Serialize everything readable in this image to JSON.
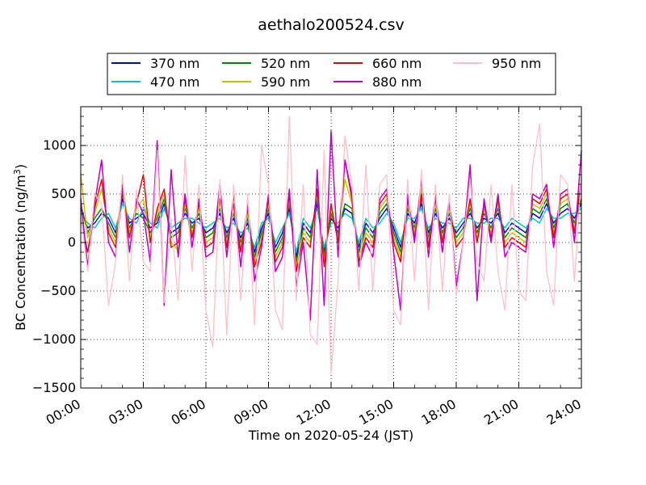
{
  "chart_data": {
    "type": "line",
    "title": "aethalo200524.csv",
    "xlabel": "Time on 2020-05-24 (JST)",
    "ylabel": "BC Concentration (ng/m³)",
    "xlim": [
      "00:00",
      "24:00"
    ],
    "ylim": [
      -1500,
      1400
    ],
    "x_tick_labels": [
      "00:00",
      "03:00",
      "06:00",
      "09:00",
      "12:00",
      "15:00",
      "18:00",
      "21:00",
      "24:00"
    ],
    "y_ticks": [
      -1500,
      -1000,
      -500,
      0,
      500,
      1000
    ],
    "y_tick_labels": [
      "−1500",
      "−1000",
      "−500",
      "0",
      "500",
      "1000"
    ],
    "grid": true,
    "legend_position": "top-center, above plot",
    "x": [
      "00:00",
      "00:20",
      "00:40",
      "01:00",
      "01:20",
      "01:40",
      "02:00",
      "02:20",
      "02:40",
      "03:00",
      "03:20",
      "03:40",
      "04:00",
      "04:20",
      "04:40",
      "05:00",
      "05:20",
      "05:40",
      "06:00",
      "06:20",
      "06:40",
      "07:00",
      "07:20",
      "07:40",
      "08:00",
      "08:20",
      "08:40",
      "09:00",
      "09:20",
      "09:40",
      "10:00",
      "10:20",
      "10:40",
      "11:00",
      "11:20",
      "11:40",
      "12:00",
      "12:20",
      "12:40",
      "13:00",
      "13:20",
      "13:40",
      "14:00",
      "14:20",
      "14:40",
      "15:00",
      "15:20",
      "15:40",
      "16:00",
      "16:20",
      "16:40",
      "17:00",
      "17:20",
      "17:40",
      "18:00",
      "18:20",
      "18:40",
      "19:00",
      "19:20",
      "19:40",
      "20:00",
      "20:20",
      "20:40",
      "21:00",
      "21:20",
      "21:40",
      "22:00",
      "22:20",
      "22:40",
      "23:00",
      "23:20",
      "23:40",
      "24:00"
    ],
    "series": [
      {
        "name": "370 nm",
        "color": "#0000cc",
        "values": [
          350,
          150,
          200,
          300,
          250,
          100,
          450,
          200,
          250,
          300,
          150,
          200,
          400,
          100,
          150,
          300,
          200,
          250,
          100,
          150,
          300,
          100,
          250,
          50,
          200,
          -100,
          150,
          300,
          -50,
          100,
          350,
          -150,
          200,
          100,
          400,
          -100,
          250,
          150,
          350,
          300,
          -50,
          200,
          100,
          250,
          350,
          150,
          -50,
          300,
          200,
          400,
          100,
          300,
          150,
          250,
          100,
          200,
          300,
          150,
          250,
          200,
          300,
          100,
          200,
          150,
          100,
          300,
          250,
          400,
          200,
          300,
          350,
          250,
          400
        ]
      },
      {
        "name": "470 nm",
        "color": "#00bfbf",
        "values": [
          300,
          200,
          150,
          250,
          300,
          150,
          400,
          250,
          200,
          350,
          200,
          150,
          350,
          150,
          200,
          250,
          250,
          200,
          150,
          200,
          250,
          150,
          200,
          100,
          150,
          -50,
          200,
          250,
          0,
          150,
          300,
          -100,
          250,
          150,
          350,
          -50,
          200,
          200,
          300,
          250,
          0,
          250,
          150,
          200,
          300,
          200,
          0,
          250,
          250,
          350,
          150,
          250,
          200,
          200,
          150,
          250,
          250,
          200,
          200,
          250,
          250,
          150,
          250,
          200,
          150,
          250,
          200,
          350,
          250,
          250,
          300,
          300,
          350
        ]
      },
      {
        "name": "520 nm",
        "color": "#008000",
        "values": [
          400,
          100,
          250,
          350,
          200,
          50,
          500,
          150,
          300,
          250,
          100,
          250,
          450,
          50,
          100,
          350,
          150,
          300,
          50,
          100,
          350,
          50,
          300,
          0,
          250,
          -150,
          100,
          350,
          -100,
          50,
          400,
          -200,
          150,
          50,
          450,
          -150,
          300,
          100,
          400,
          350,
          -100,
          150,
          50,
          300,
          400,
          100,
          -100,
          350,
          150,
          450,
          50,
          350,
          100,
          300,
          50,
          150,
          350,
          100,
          300,
          150,
          350,
          50,
          150,
          100,
          50,
          350,
          300,
          450,
          150,
          350,
          400,
          200,
          450
        ]
      },
      {
        "name": "590 nm",
        "color": "#bfbf00",
        "values": [
          700,
          50,
          300,
          550,
          150,
          0,
          600,
          100,
          350,
          450,
          50,
          300,
          500,
          0,
          -80,
          400,
          100,
          350,
          0,
          50,
          400,
          0,
          350,
          -50,
          300,
          -200,
          50,
          400,
          -150,
          0,
          450,
          -250,
          100,
          0,
          500,
          -200,
          350,
          50,
          650,
          400,
          -150,
          100,
          0,
          350,
          450,
          50,
          -150,
          400,
          100,
          550,
          0,
          400,
          50,
          350,
          0,
          100,
          400,
          50,
          350,
          100,
          400,
          0,
          100,
          50,
          0,
          400,
          350,
          500,
          100,
          400,
          450,
          150,
          600
        ]
      },
      {
        "name": "660 nm",
        "color": "#e00000",
        "values": [
          250,
          -100,
          350,
          650,
          100,
          -50,
          550,
          50,
          400,
          700,
          0,
          350,
          550,
          -50,
          0,
          450,
          50,
          400,
          -50,
          0,
          450,
          -50,
          400,
          -100,
          350,
          -250,
          0,
          450,
          -200,
          -50,
          500,
          -300,
          50,
          -50,
          550,
          -250,
          400,
          0,
          850,
          450,
          -200,
          50,
          -50,
          400,
          500,
          0,
          -200,
          450,
          50,
          500,
          -50,
          450,
          0,
          400,
          -50,
          50,
          450,
          0,
          400,
          50,
          450,
          -50,
          50,
          0,
          -50,
          450,
          400,
          550,
          50,
          450,
          500,
          100,
          650
        ]
      },
      {
        "name": "880 nm",
        "color": "#bf00bf",
        "values": [
          450,
          -250,
          400,
          850,
          0,
          -150,
          600,
          -100,
          450,
          300,
          -200,
          1050,
          -650,
          750,
          -150,
          500,
          -50,
          450,
          -150,
          -100,
          600,
          -150,
          500,
          -250,
          400,
          -400,
          -50,
          500,
          -300,
          -150,
          550,
          -450,
          0,
          -800,
          750,
          -650,
          1150,
          -150,
          850,
          500,
          -250,
          0,
          -150,
          450,
          550,
          -100,
          -700,
          500,
          0,
          650,
          -150,
          500,
          -100,
          450,
          -450,
          0,
          800,
          -600,
          450,
          0,
          500,
          -150,
          0,
          -50,
          -100,
          500,
          450,
          600,
          -50,
          500,
          550,
          0,
          950
        ]
      },
      {
        "name": "950 nm",
        "color": "#ffc0cb",
        "values": [
          300,
          -300,
          500,
          400,
          -650,
          -200,
          700,
          -400,
          550,
          -200,
          -300,
          950,
          -620,
          250,
          -600,
          900,
          -300,
          600,
          -700,
          -1080,
          650,
          -950,
          600,
          -600,
          500,
          -850,
          1000,
          600,
          -700,
          -900,
          1300,
          -600,
          600,
          -950,
          -1050,
          950,
          -1360,
          -400,
          1100,
          600,
          -500,
          800,
          -500,
          600,
          700,
          -700,
          -850,
          650,
          -400,
          750,
          -700,
          600,
          -500,
          500,
          -550,
          0,
          650,
          -200,
          -400,
          600,
          -300,
          -700,
          600,
          -500,
          -600,
          800,
          1220,
          -300,
          -650,
          700,
          600,
          -400,
          700
        ]
      }
    ]
  }
}
